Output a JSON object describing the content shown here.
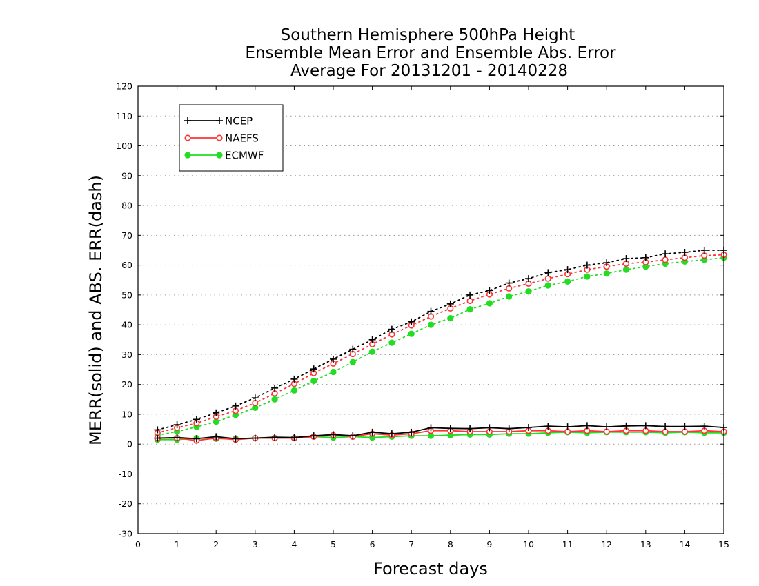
{
  "chart_data": {
    "type": "line",
    "title": [
      "Southern Hemisphere 500hPa Height",
      "Ensemble Mean Error and Ensemble Abs. Error",
      "Average For 20131201 - 20140228"
    ],
    "xlabel": "Forecast days",
    "ylabel": "MERR(solid) and ABS. ERR(dash)",
    "xlim": [
      0,
      15
    ],
    "ylim": [
      -30,
      120
    ],
    "xticks": [
      0,
      1,
      2,
      3,
      4,
      5,
      6,
      7,
      8,
      9,
      10,
      11,
      12,
      13,
      14,
      15
    ],
    "yticks": [
      -30,
      -20,
      -10,
      0,
      10,
      20,
      30,
      40,
      50,
      60,
      70,
      80,
      90,
      100,
      110,
      120
    ],
    "grid": "horizontal-dotted",
    "legend_position": "top-left",
    "x": [
      0.5,
      1,
      1.5,
      2,
      2.5,
      3,
      3.5,
      4,
      4.5,
      5,
      5.5,
      6,
      6.5,
      7,
      7.5,
      8,
      8.5,
      9,
      9.5,
      10,
      10.5,
      11,
      11.5,
      12,
      12.5,
      13,
      13.5,
      14,
      14.5,
      15
    ],
    "series": [
      {
        "name": "NCEP",
        "color": "#000000",
        "marker": "plus",
        "merr": [
          2.0,
          2.2,
          1.8,
          2.5,
          1.8,
          2.0,
          2.3,
          2.2,
          2.8,
          3.2,
          2.8,
          4.0,
          3.5,
          4.0,
          5.5,
          5.3,
          5.2,
          5.5,
          5.2,
          5.6,
          6.0,
          5.8,
          6.2,
          5.8,
          6.1,
          6.2,
          5.9,
          5.9,
          6.0,
          5.6
        ],
        "abs_err": [
          4.8,
          6.5,
          8.3,
          10.5,
          12.8,
          15.5,
          18.8,
          21.8,
          25.2,
          28.5,
          31.8,
          35.0,
          38.5,
          41.0,
          44.5,
          47.0,
          50.0,
          51.5,
          54.0,
          55.5,
          57.5,
          58.5,
          60.0,
          60.8,
          62.2,
          62.5,
          63.8,
          64.3,
          65.0,
          65.0
        ]
      },
      {
        "name": "NAEFS",
        "color": "#ff3333",
        "marker": "open-circle",
        "merr": [
          2.0,
          2.0,
          1.2,
          2.0,
          1.5,
          2.0,
          2.0,
          2.0,
          2.5,
          3.0,
          2.5,
          3.5,
          3.0,
          3.5,
          4.5,
          4.5,
          4.2,
          4.2,
          4.2,
          4.5,
          4.5,
          4.2,
          4.5,
          4.2,
          4.5,
          4.5,
          4.2,
          4.2,
          4.5,
          4.2
        ],
        "abs_err": [
          3.8,
          5.5,
          7.0,
          9.2,
          11.2,
          13.8,
          17.0,
          20.2,
          23.8,
          27.0,
          30.2,
          33.5,
          36.8,
          39.8,
          42.8,
          45.5,
          48.0,
          50.2,
          52.2,
          53.8,
          55.5,
          57.0,
          58.5,
          59.5,
          60.5,
          61.0,
          61.8,
          62.5,
          63.2,
          63.5
        ]
      },
      {
        "name": "ECMWF",
        "color": "#22dd22",
        "marker": "filled-circle",
        "merr": [
          1.5,
          1.5,
          2.0,
          1.8,
          1.8,
          2.0,
          2.0,
          2.0,
          2.5,
          2.2,
          2.5,
          2.2,
          2.5,
          2.8,
          2.8,
          3.0,
          3.2,
          3.2,
          3.5,
          3.5,
          3.8,
          4.0,
          3.8,
          4.0,
          4.0,
          4.0,
          3.8,
          4.0,
          3.8,
          3.8
        ],
        "abs_err": [
          3.0,
          4.2,
          5.8,
          7.5,
          9.8,
          12.2,
          15.0,
          18.0,
          21.2,
          24.2,
          27.5,
          31.0,
          34.0,
          37.0,
          40.0,
          42.2,
          45.2,
          47.2,
          49.5,
          51.2,
          53.2,
          54.5,
          56.2,
          57.2,
          58.5,
          59.5,
          60.5,
          61.2,
          61.8,
          62.5
        ]
      }
    ]
  }
}
